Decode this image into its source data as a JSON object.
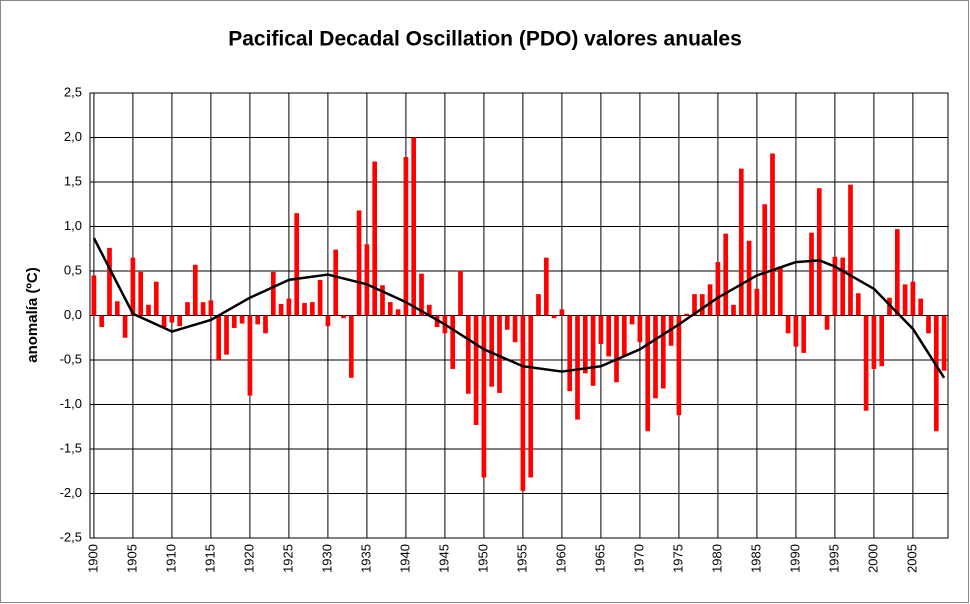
{
  "chart_data": {
    "type": "bar",
    "title": "Pacifical Decadal Oscillation (PDO) valores anuales",
    "y_label": "anomalía (ºC)",
    "x": [
      1900,
      1901,
      1902,
      1903,
      1904,
      1905,
      1906,
      1907,
      1908,
      1909,
      1910,
      1911,
      1912,
      1913,
      1914,
      1915,
      1916,
      1917,
      1918,
      1919,
      1920,
      1921,
      1922,
      1923,
      1924,
      1925,
      1926,
      1927,
      1928,
      1929,
      1930,
      1931,
      1932,
      1933,
      1934,
      1935,
      1936,
      1937,
      1938,
      1939,
      1940,
      1941,
      1942,
      1943,
      1944,
      1945,
      1946,
      1947,
      1948,
      1949,
      1950,
      1951,
      1952,
      1953,
      1954,
      1955,
      1956,
      1957,
      1958,
      1959,
      1960,
      1961,
      1962,
      1963,
      1964,
      1965,
      1966,
      1967,
      1968,
      1969,
      1970,
      1971,
      1972,
      1973,
      1974,
      1975,
      1976,
      1977,
      1978,
      1979,
      1980,
      1981,
      1982,
      1983,
      1984,
      1985,
      1986,
      1987,
      1988,
      1989,
      1990,
      1991,
      1992,
      1993,
      1994,
      1995,
      1996,
      1997,
      1998,
      1999,
      2000,
      2001,
      2002,
      2003,
      2004,
      2005,
      2006,
      2007,
      2008,
      2009
    ],
    "values": [
      0.45,
      -0.13,
      0.76,
      0.16,
      -0.25,
      0.65,
      0.49,
      0.12,
      0.38,
      -0.13,
      -0.08,
      -0.12,
      0.15,
      0.57,
      0.15,
      0.17,
      -0.5,
      -0.44,
      -0.14,
      -0.09,
      -0.9,
      -0.1,
      -0.2,
      0.49,
      0.13,
      0.19,
      1.15,
      0.14,
      0.15,
      0.4,
      -0.12,
      0.74,
      -0.03,
      -0.7,
      1.18,
      0.8,
      1.73,
      0.34,
      0.15,
      0.07,
      1.78,
      2.0,
      0.47,
      0.12,
      -0.13,
      -0.2,
      -0.6,
      0.5,
      -0.88,
      -1.23,
      -1.82,
      -0.8,
      -0.87,
      -0.16,
      -0.3,
      -1.97,
      -1.82,
      0.24,
      0.65,
      -0.03,
      0.07,
      -0.85,
      -1.17,
      -0.65,
      -0.79,
      -0.32,
      -0.46,
      -0.75,
      -0.45,
      -0.1,
      -0.3,
      -1.3,
      -0.93,
      -0.82,
      -0.34,
      -1.12,
      0.02,
      0.24,
      0.24,
      0.35,
      0.6,
      0.92,
      0.12,
      1.65,
      0.84,
      0.3,
      1.25,
      1.82,
      0.55,
      -0.2,
      -0.35,
      -0.42,
      0.93,
      1.43,
      -0.16,
      0.66,
      0.65,
      1.47,
      0.25,
      -1.07,
      -0.6,
      -0.57,
      0.2,
      0.97,
      0.35,
      0.38,
      0.19,
      -0.2,
      -1.3,
      -0.62
    ],
    "color": "#ff0000",
    "trend": {
      "x": [
        1900,
        1905,
        1910,
        1915,
        1920,
        1925,
        1930,
        1935,
        1940,
        1945,
        1950,
        1955,
        1960,
        1965,
        1970,
        1975,
        1980,
        1985,
        1990,
        1993,
        1995,
        2000,
        2005,
        2009
      ],
      "values": [
        0.87,
        0.02,
        -0.18,
        -0.05,
        0.2,
        0.4,
        0.46,
        0.35,
        0.15,
        -0.1,
        -0.38,
        -0.57,
        -0.63,
        -0.57,
        -0.38,
        -0.1,
        0.2,
        0.45,
        0.6,
        0.62,
        0.55,
        0.3,
        -0.15,
        -0.7
      ],
      "color": "#000000"
    },
    "xlim": [
      1899.5,
      2009.5
    ],
    "xticks": [
      1900,
      1905,
      1910,
      1915,
      1920,
      1925,
      1930,
      1935,
      1940,
      1945,
      1950,
      1955,
      1960,
      1965,
      1970,
      1975,
      1980,
      1985,
      1990,
      1995,
      2000,
      2005
    ],
    "ylim": [
      -2.5,
      2.5
    ],
    "yticks": [
      {
        "value": -2.5,
        "label": "-2,5"
      },
      {
        "value": -2,
        "label": "-2,0"
      },
      {
        "value": -1.5,
        "label": "-1,5"
      },
      {
        "value": -1,
        "label": "-1,0"
      },
      {
        "value": -0.5,
        "label": "-0,5"
      },
      {
        "value": 0,
        "label": "0,0"
      },
      {
        "value": 0.5,
        "label": "0,5"
      },
      {
        "value": 1,
        "label": "1,0"
      },
      {
        "value": 1.5,
        "label": "1,5"
      },
      {
        "value": 2,
        "label": "2,0"
      },
      {
        "value": 2.5,
        "label": "2,5"
      }
    ],
    "grid": true
  }
}
